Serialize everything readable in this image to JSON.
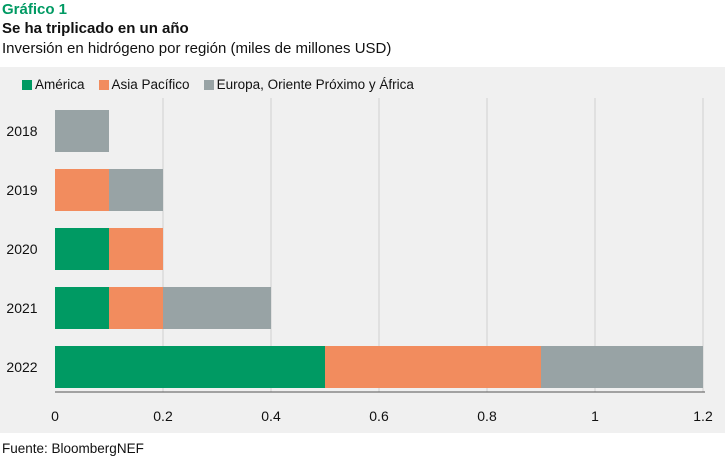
{
  "header": {
    "kicker": "Gráfico 1",
    "title": "Se ha triplicado en un año",
    "subtitle": "Inversión en hidrógeno por región (miles de millones USD)"
  },
  "footer": {
    "source": "Fuente: BloombergNEF"
  },
  "chart_data": {
    "type": "bar",
    "orientation": "horizontal",
    "stacked": true,
    "title": "Se ha triplicado en un año",
    "subtitle": "Inversión en hidrógeno por región (miles de millones USD)",
    "xlabel": "",
    "ylabel": "",
    "categories": [
      "2018",
      "2019",
      "2020",
      "2021",
      "2022"
    ],
    "series": [
      {
        "name": "América",
        "color": "#009a63",
        "values": [
          0,
          0,
          0.1,
          0.1,
          0.5
        ]
      },
      {
        "name": "Asia Pacífico",
        "color": "#f28c5e",
        "values": [
          0,
          0.1,
          0.1,
          0.1,
          0.4
        ]
      },
      {
        "name": "Europa, Oriente Próximo y África",
        "color": "#98a3a5",
        "values": [
          0.1,
          0.1,
          0,
          0.2,
          0.3
        ]
      }
    ],
    "xlim": [
      0,
      1.2
    ],
    "xticks": [
      "0",
      "0.2",
      "0.4",
      "0.6",
      "0.8",
      "1",
      "1.2"
    ],
    "grid": true,
    "legend_position": "top-left"
  }
}
